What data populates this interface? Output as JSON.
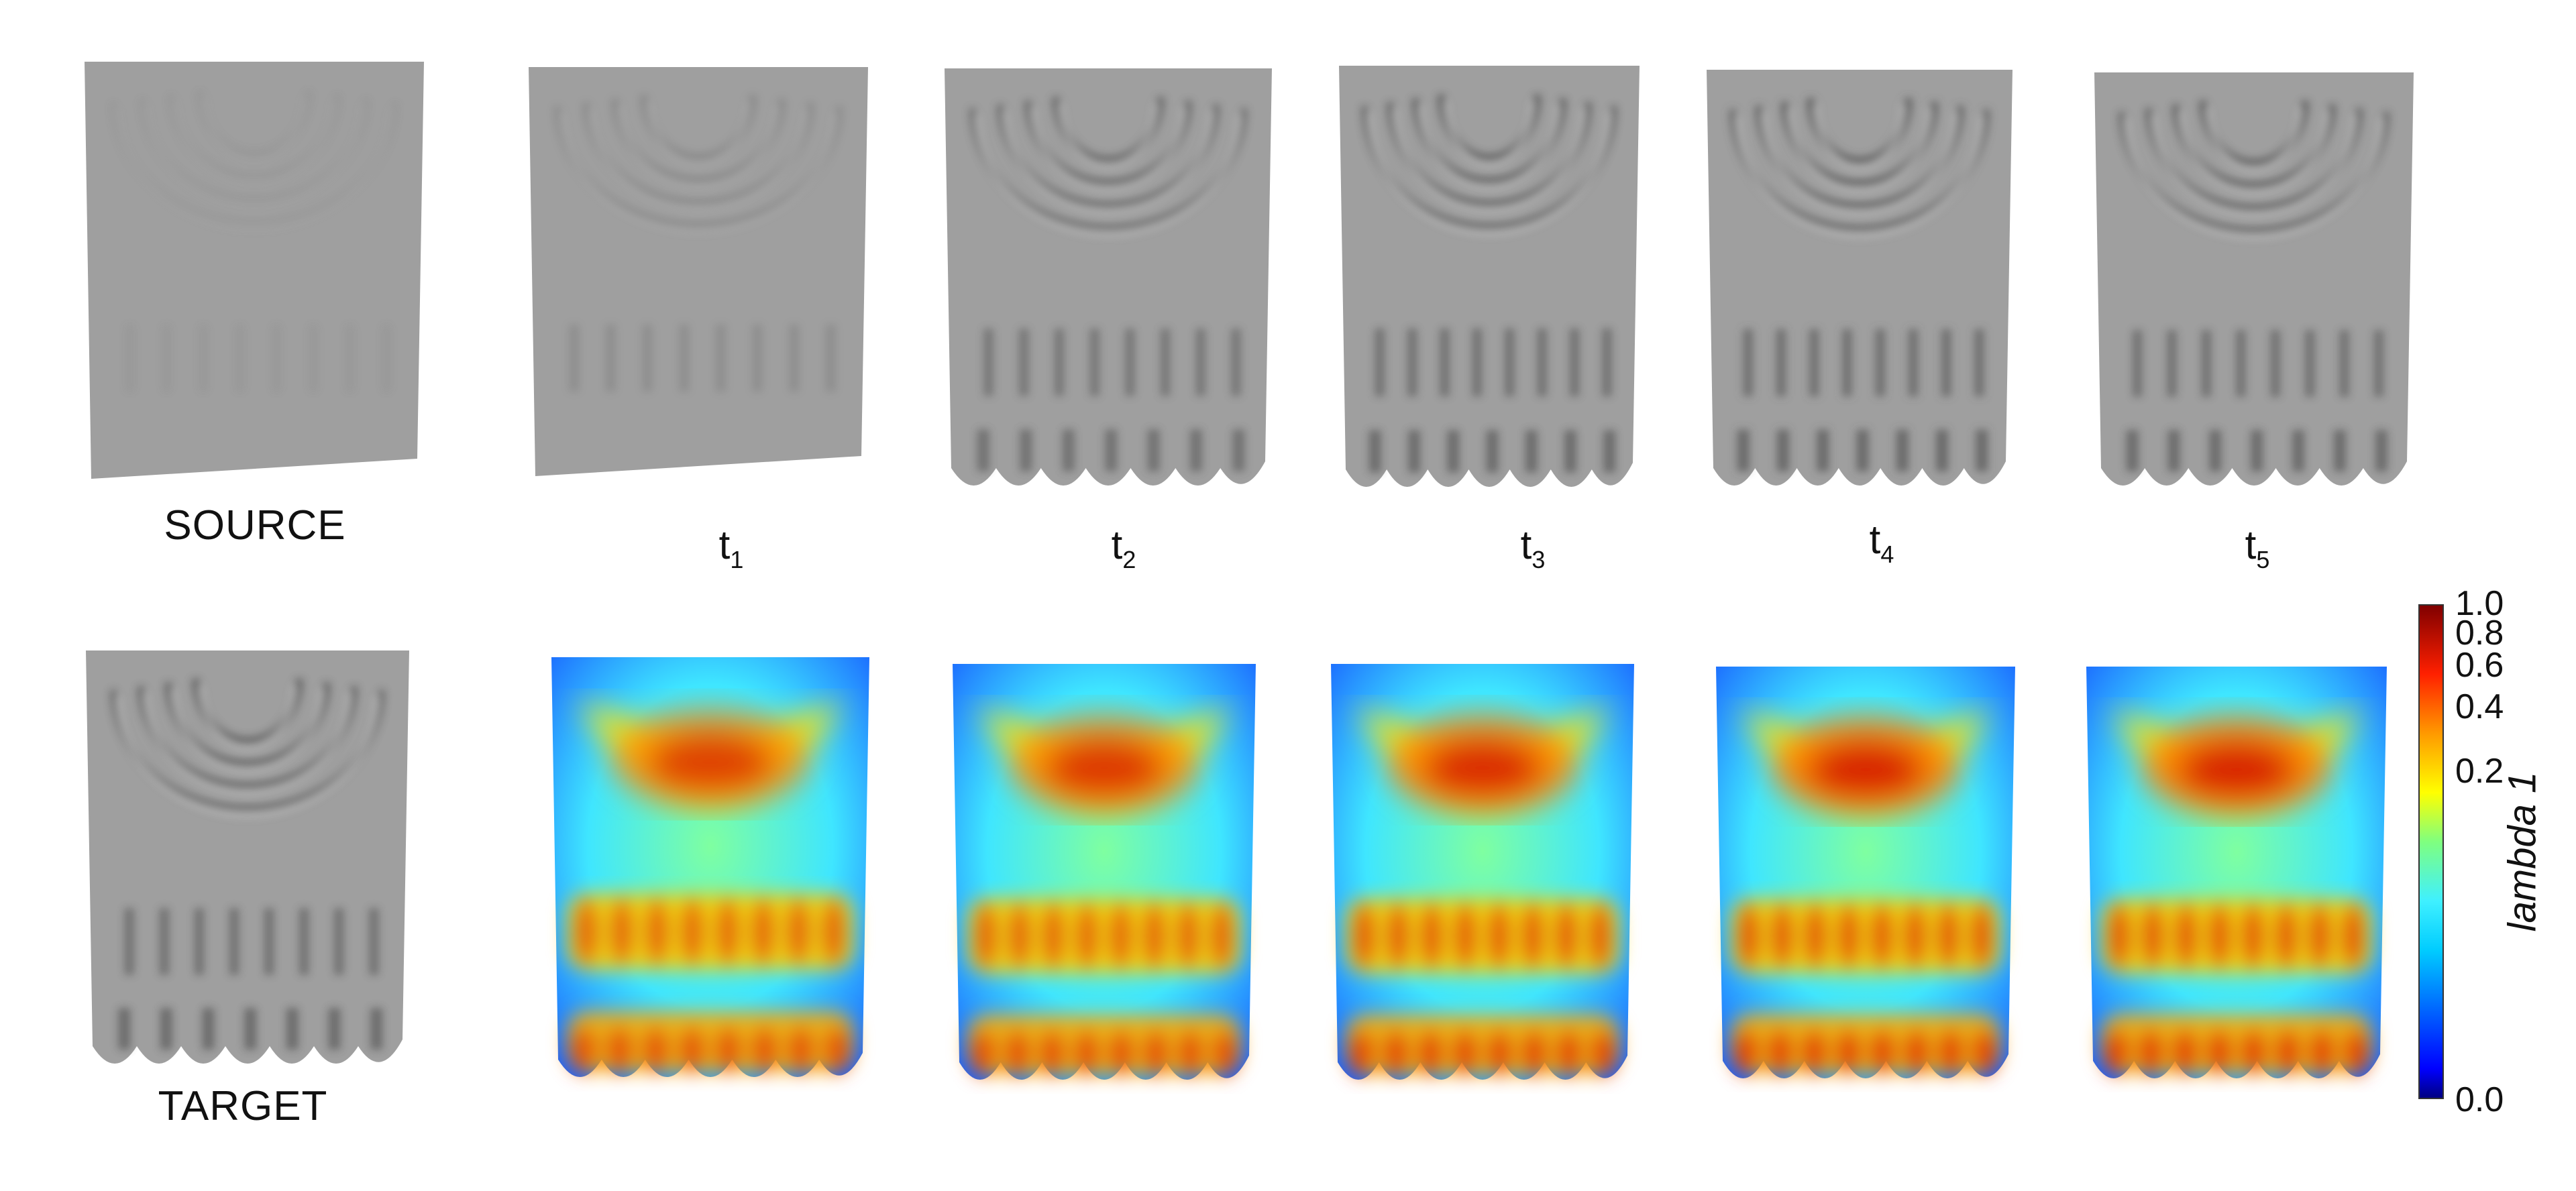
{
  "labels": {
    "source": "SOURCE",
    "target": "TARGET",
    "steps": [
      {
        "base": "t",
        "sub": "1"
      },
      {
        "base": "t",
        "sub": "2"
      },
      {
        "base": "t",
        "sub": "3"
      },
      {
        "base": "t",
        "sub": "4"
      },
      {
        "base": "t",
        "sub": "5"
      }
    ]
  },
  "colorbar": {
    "title": "lambda 1",
    "ticks": [
      "1.0",
      "0.8",
      "0.6",
      "0.4",
      "0.2",
      "0.0"
    ],
    "colormap": "jet",
    "colors": [
      "#00007f",
      "#0000ff",
      "#00bfff",
      "#3ff0ff",
      "#7fff7f",
      "#ffff00",
      "#ff9900",
      "#ff0000",
      "#7f0000"
    ]
  },
  "panels": {
    "cloth_color": "#9f9f9f",
    "wrinkle_strength": [
      0.12,
      0.35,
      0.85,
      0.95,
      1.0,
      0.95
    ],
    "target_strength": 0.95,
    "heat_intensity": [
      0.75,
      0.8,
      0.88,
      0.95,
      0.95
    ]
  }
}
